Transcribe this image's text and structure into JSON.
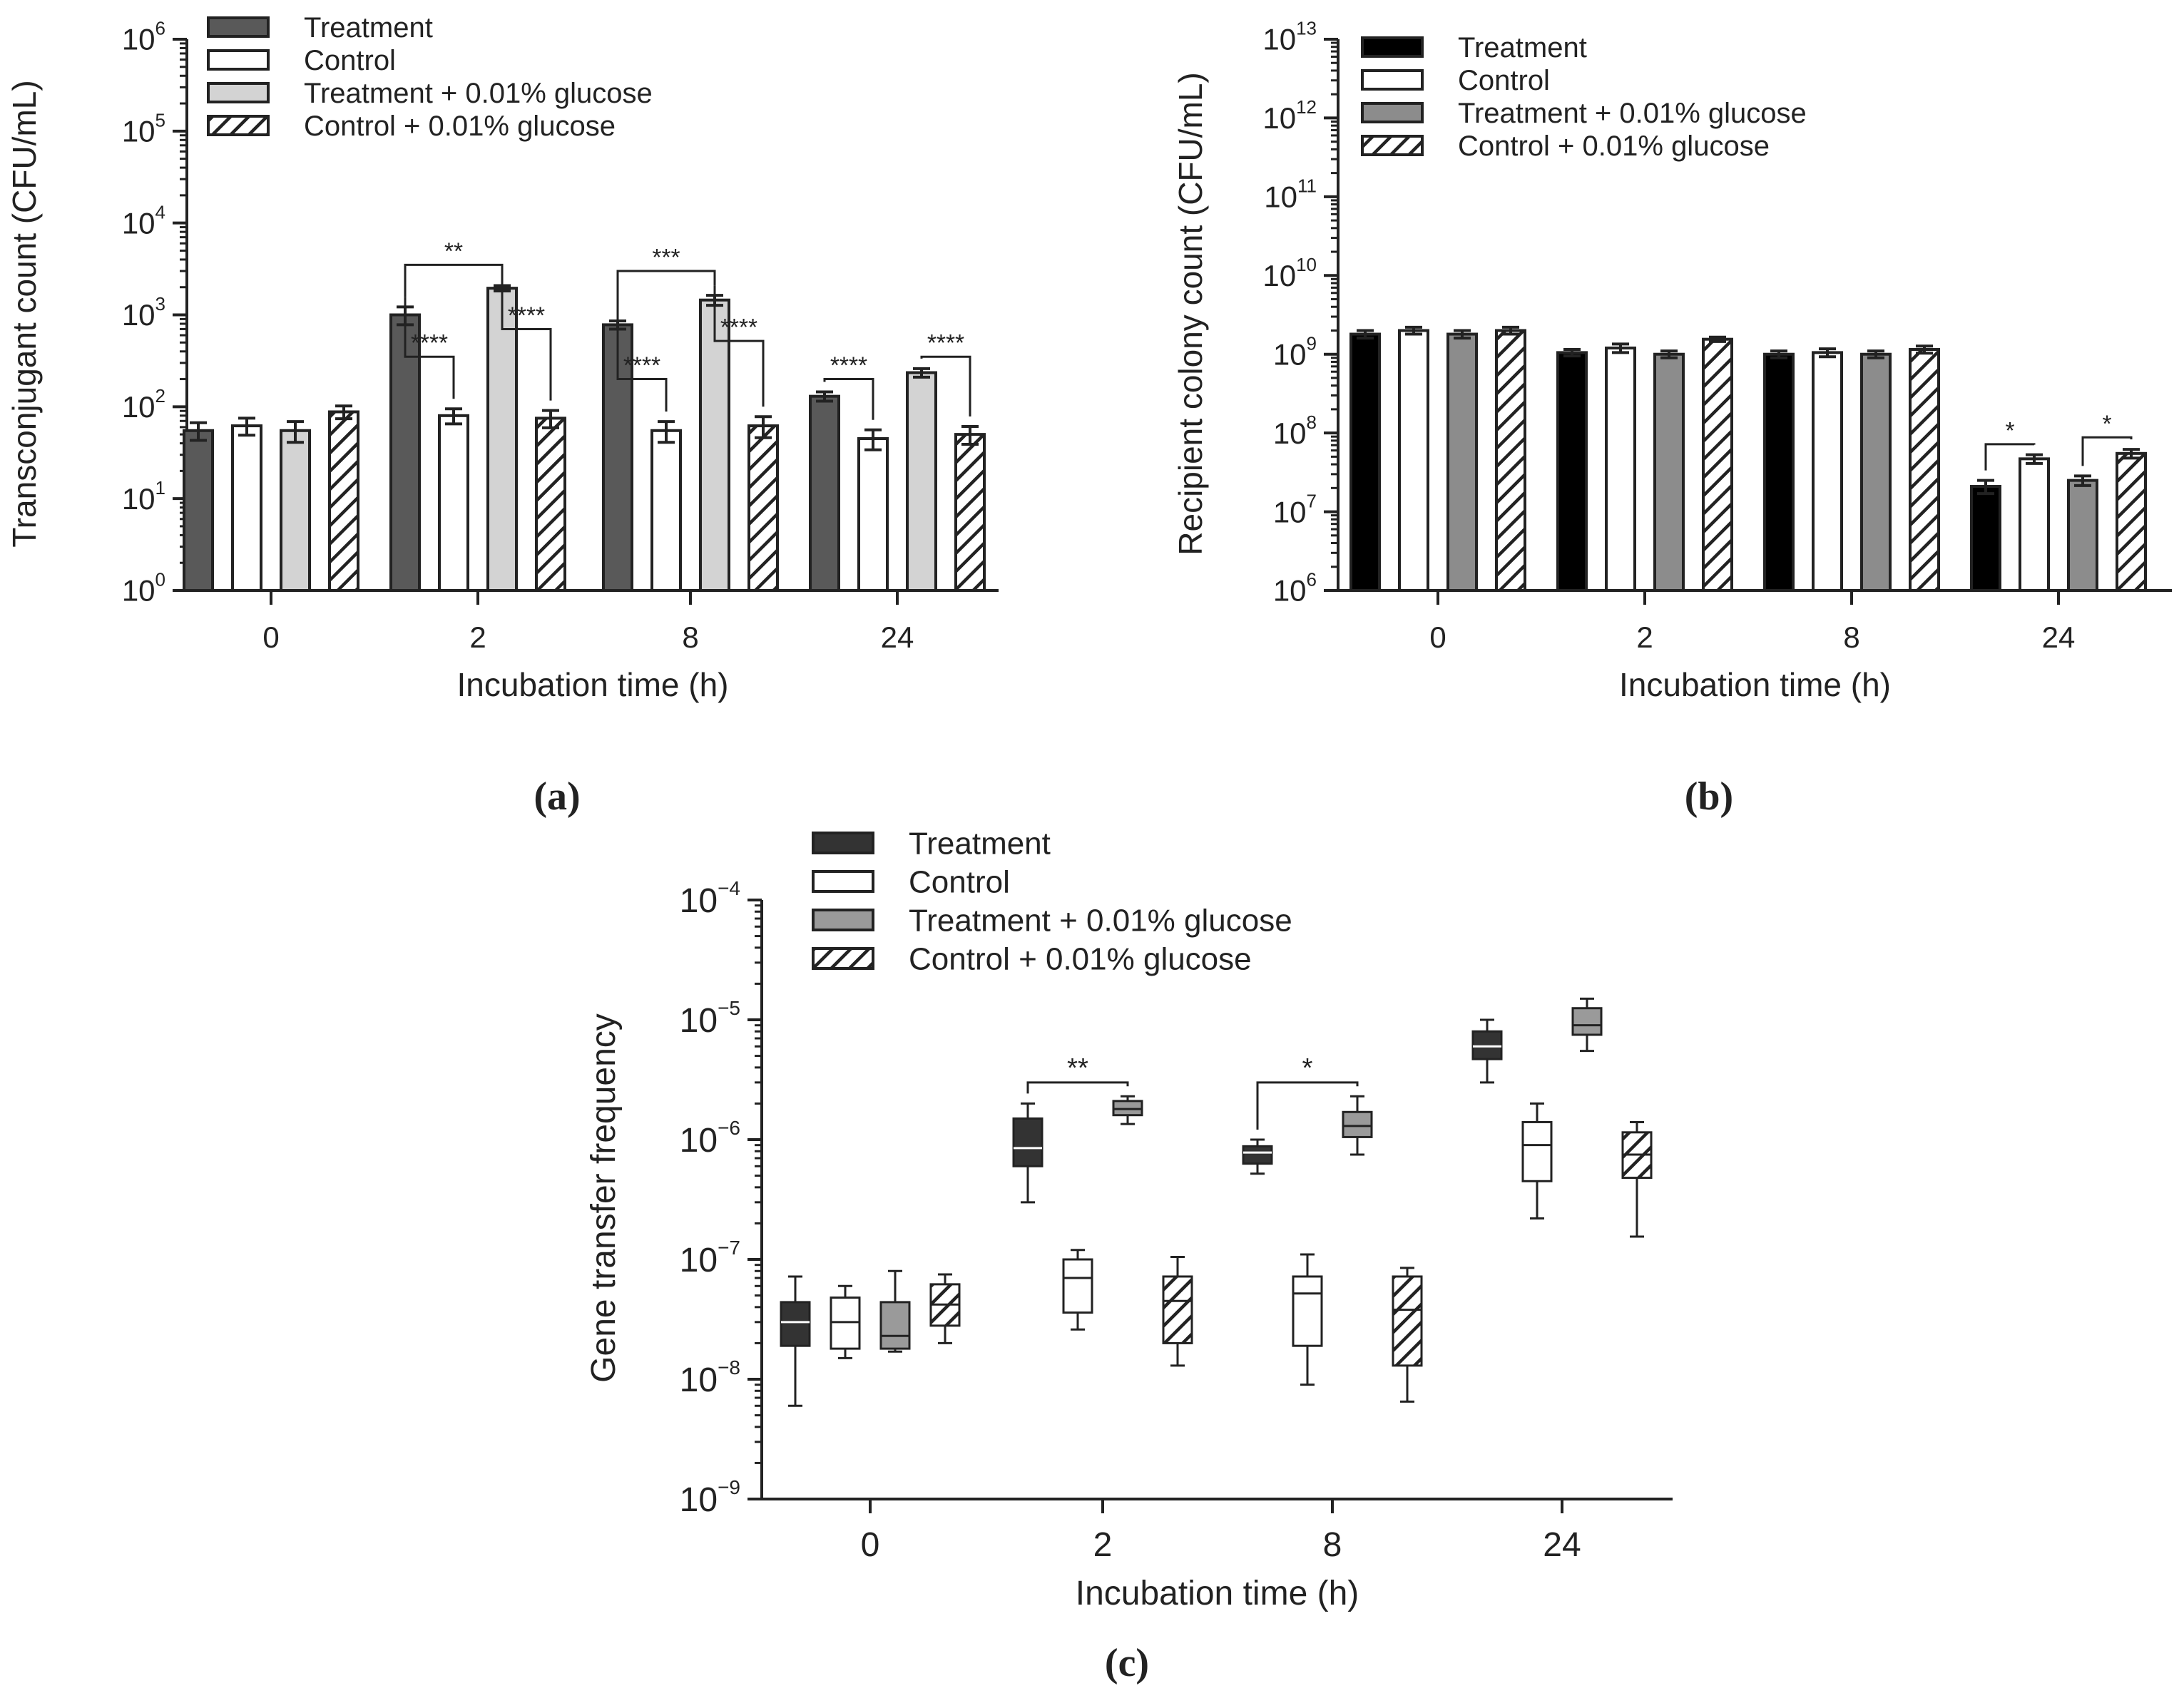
{
  "colors": {
    "axis": "#222222",
    "treatment_a": "#595959",
    "treatment_b": "#000000",
    "treatment_c": "#333333",
    "control": "#ffffff",
    "glucose_a": "#d3d3d3",
    "glucose_b": "#8c8c8c",
    "glucose_c": "#9a9a9a",
    "hatch": "#222222"
  },
  "chart_data": [
    {
      "panel_label": "(a)",
      "type": "bar",
      "yscale": "log",
      "ylim": [
        1,
        1000000
      ],
      "yticks": [
        {
          "base": "10",
          "exp": "0"
        },
        {
          "base": "10",
          "exp": "1"
        },
        {
          "base": "10",
          "exp": "2"
        },
        {
          "base": "10",
          "exp": "3"
        },
        {
          "base": "10",
          "exp": "4"
        },
        {
          "base": "10",
          "exp": "5"
        },
        {
          "base": "10",
          "exp": "6"
        }
      ],
      "xlabel": "Incubation time (h)",
      "ylabel": "Transconjugant count (CFU/mL)",
      "categories": [
        "0",
        "2",
        "8",
        "24"
      ],
      "series": [
        {
          "name": "Treatment",
          "fill": "treatment_a",
          "hatch": false,
          "values": [
            55,
            1000,
            780,
            130
          ],
          "errors": [
            12,
            220,
            80,
            15
          ]
        },
        {
          "name": "Control",
          "fill": "control",
          "hatch": false,
          "values": [
            62,
            80,
            55,
            45
          ],
          "errors": [
            13,
            15,
            14,
            11
          ]
        },
        {
          "name": "Treatment + 0.01% glucose",
          "fill": "glucose_a",
          "hatch": false,
          "values": [
            55,
            1950,
            1450,
            235
          ],
          "errors": [
            14,
            130,
            180,
            25
          ]
        },
        {
          "name": "Control + 0.01% glucose",
          "fill": "control",
          "hatch": true,
          "values": [
            88,
            75,
            62,
            50
          ],
          "errors": [
            14,
            16,
            16,
            11
          ]
        }
      ],
      "significance": [
        {
          "category": 1,
          "from": 0,
          "to": 1,
          "label": "****",
          "bracket_y": 350,
          "left_to_bar": true
        },
        {
          "category": 1,
          "from": 2,
          "to": 3,
          "label": "****",
          "bracket_y": 700,
          "left_to_bar": true
        },
        {
          "category": 1,
          "from": 0,
          "to": 2,
          "label": "**",
          "bracket_y": 3500,
          "left_to_bar": false
        },
        {
          "category": 2,
          "from": 0,
          "to": 1,
          "label": "****",
          "bracket_y": 200,
          "left_to_bar": true
        },
        {
          "category": 2,
          "from": 2,
          "to": 3,
          "label": "****",
          "bracket_y": 520,
          "left_to_bar": true
        },
        {
          "category": 2,
          "from": 0,
          "to": 2,
          "label": "***",
          "bracket_y": 3000,
          "left_to_bar": false
        },
        {
          "category": 3,
          "from": 0,
          "to": 1,
          "label": "****",
          "bracket_y": 200,
          "left_to_bar": false
        },
        {
          "category": 3,
          "from": 2,
          "to": 3,
          "label": "****",
          "bracket_y": 350,
          "left_to_bar": false
        }
      ]
    },
    {
      "panel_label": "(b)",
      "type": "bar",
      "yscale": "log",
      "ylim": [
        1000000,
        10000000000000
      ],
      "yticks": [
        {
          "base": "10",
          "exp": "6"
        },
        {
          "base": "10",
          "exp": "7"
        },
        {
          "base": "10",
          "exp": "8"
        },
        {
          "base": "10",
          "exp": "9"
        },
        {
          "base": "10",
          "exp": "10"
        },
        {
          "base": "10",
          "exp": "11"
        },
        {
          "base": "10",
          "exp": "12"
        },
        {
          "base": "10",
          "exp": "13"
        }
      ],
      "xlabel": "Incubation time (h)",
      "ylabel": "Recipient colony count (CFU/mL)",
      "categories": [
        "0",
        "2",
        "8",
        "24"
      ],
      "series": [
        {
          "name": "Treatment",
          "fill": "treatment_b",
          "hatch": false,
          "values": [
            1800000000,
            1050000000,
            1000000000,
            21000000
          ],
          "errors": [
            200000000,
            100000000,
            100000000,
            4000000
          ]
        },
        {
          "name": "Control",
          "fill": "control",
          "hatch": false,
          "values": [
            2000000000,
            1200000000,
            1050000000,
            47000000
          ],
          "errors": [
            200000000,
            150000000,
            120000000,
            6000000
          ]
        },
        {
          "name": "Treatment + 0.01% glucose",
          "fill": "glucose_b",
          "hatch": false,
          "values": [
            1800000000,
            1000000000,
            1000000000,
            25000000
          ],
          "errors": [
            200000000,
            100000000,
            100000000,
            3500000
          ]
        },
        {
          "name": "Control + 0.01% glucose",
          "fill": "control",
          "hatch": true,
          "values": [
            2000000000,
            1550000000,
            1150000000,
            55000000
          ],
          "errors": [
            200000000,
            100000000,
            120000000,
            7000000
          ]
        }
      ],
      "significance": [
        {
          "category": 3,
          "from": 0,
          "to": 1,
          "label": "*",
          "bracket_y": 72000000,
          "left_to_bar": false
        },
        {
          "category": 3,
          "from": 2,
          "to": 3,
          "label": "*",
          "bracket_y": 88000000,
          "left_to_bar": false
        }
      ]
    },
    {
      "panel_label": "(c)",
      "type": "box",
      "yscale": "log",
      "ylim": [
        1e-09,
        0.0001
      ],
      "yticks": [
        {
          "base": "10",
          "exp": "−9"
        },
        {
          "base": "10",
          "exp": "−8"
        },
        {
          "base": "10",
          "exp": "−7"
        },
        {
          "base": "10",
          "exp": "−6"
        },
        {
          "base": "10",
          "exp": "−5"
        },
        {
          "base": "10",
          "exp": "−4"
        }
      ],
      "xlabel": "Incubation time (h)",
      "ylabel": "Gene transfer frequency",
      "categories": [
        "0",
        "2",
        "8",
        "24"
      ],
      "series": [
        {
          "name": "Treatment",
          "fill": "treatment_c",
          "hatch": false,
          "boxes": [
            {
              "min": 6e-09,
              "q1": 1.9e-08,
              "median": 3e-08,
              "q3": 4.4e-08,
              "max": 7.2e-08
            },
            {
              "min": 3e-07,
              "q1": 6e-07,
              "median": 8.5e-07,
              "q3": 1.5e-06,
              "max": 2e-06
            },
            {
              "min": 5.2e-07,
              "q1": 6.3e-07,
              "median": 7.8e-07,
              "q3": 8.8e-07,
              "max": 1e-06
            },
            {
              "min": 3e-06,
              "q1": 4.7e-06,
              "median": 6e-06,
              "q3": 8e-06,
              "max": 1e-05
            }
          ]
        },
        {
          "name": "Control",
          "fill": "control",
          "hatch": false,
          "boxes": [
            {
              "min": 1.5e-08,
              "q1": 1.8e-08,
              "median": 3e-08,
              "q3": 4.8e-08,
              "max": 6e-08
            },
            {
              "min": 2.6e-08,
              "q1": 3.6e-08,
              "median": 7e-08,
              "q3": 1e-07,
              "max": 1.2e-07
            },
            {
              "min": 9e-09,
              "q1": 1.9e-08,
              "median": 5.2e-08,
              "q3": 7.2e-08,
              "max": 1.1e-07
            },
            {
              "min": 2.2e-07,
              "q1": 4.5e-07,
              "median": 9e-07,
              "q3": 1.4e-06,
              "max": 2e-06
            }
          ]
        },
        {
          "name": "Treatment + 0.01% glucose",
          "fill": "glucose_c",
          "hatch": false,
          "boxes": [
            {
              "min": 1.7e-08,
              "q1": 1.8e-08,
              "median": 2.3e-08,
              "q3": 4.4e-08,
              "max": 8e-08
            },
            {
              "min": 1.35e-06,
              "q1": 1.6e-06,
              "median": 1.8e-06,
              "q3": 2.1e-06,
              "max": 2.3e-06
            },
            {
              "min": 7.5e-07,
              "q1": 1.05e-06,
              "median": 1.3e-06,
              "q3": 1.7e-06,
              "max": 2.3e-06
            },
            {
              "min": 5.5e-06,
              "q1": 7.5e-06,
              "median": 9e-06,
              "q3": 1.25e-05,
              "max": 1.5e-05
            }
          ]
        },
        {
          "name": "Control + 0.01% glucose",
          "fill": "control",
          "hatch": true,
          "boxes": [
            {
              "min": 2e-08,
              "q1": 2.8e-08,
              "median": 4.2e-08,
              "q3": 6.2e-08,
              "max": 7.5e-08
            },
            {
              "min": 1.3e-08,
              "q1": 2e-08,
              "median": 4.5e-08,
              "q3": 7.2e-08,
              "max": 1.05e-07
            },
            {
              "min": 6.5e-09,
              "q1": 1.3e-08,
              "median": 3.8e-08,
              "q3": 7.2e-08,
              "max": 8.5e-08
            },
            {
              "min": 1.55e-07,
              "q1": 4.8e-07,
              "median": 7.5e-07,
              "q3": 1.15e-06,
              "max": 1.4e-06
            }
          ]
        }
      ],
      "significance": [
        {
          "category": 1,
          "from": 0,
          "to": 2,
          "label": "**",
          "bracket_y": 3e-06,
          "left_to_bar": false
        },
        {
          "category": 2,
          "from": 0,
          "to": 2,
          "label": "*",
          "bracket_y": 3e-06,
          "left_to_bar": false
        }
      ]
    }
  ]
}
